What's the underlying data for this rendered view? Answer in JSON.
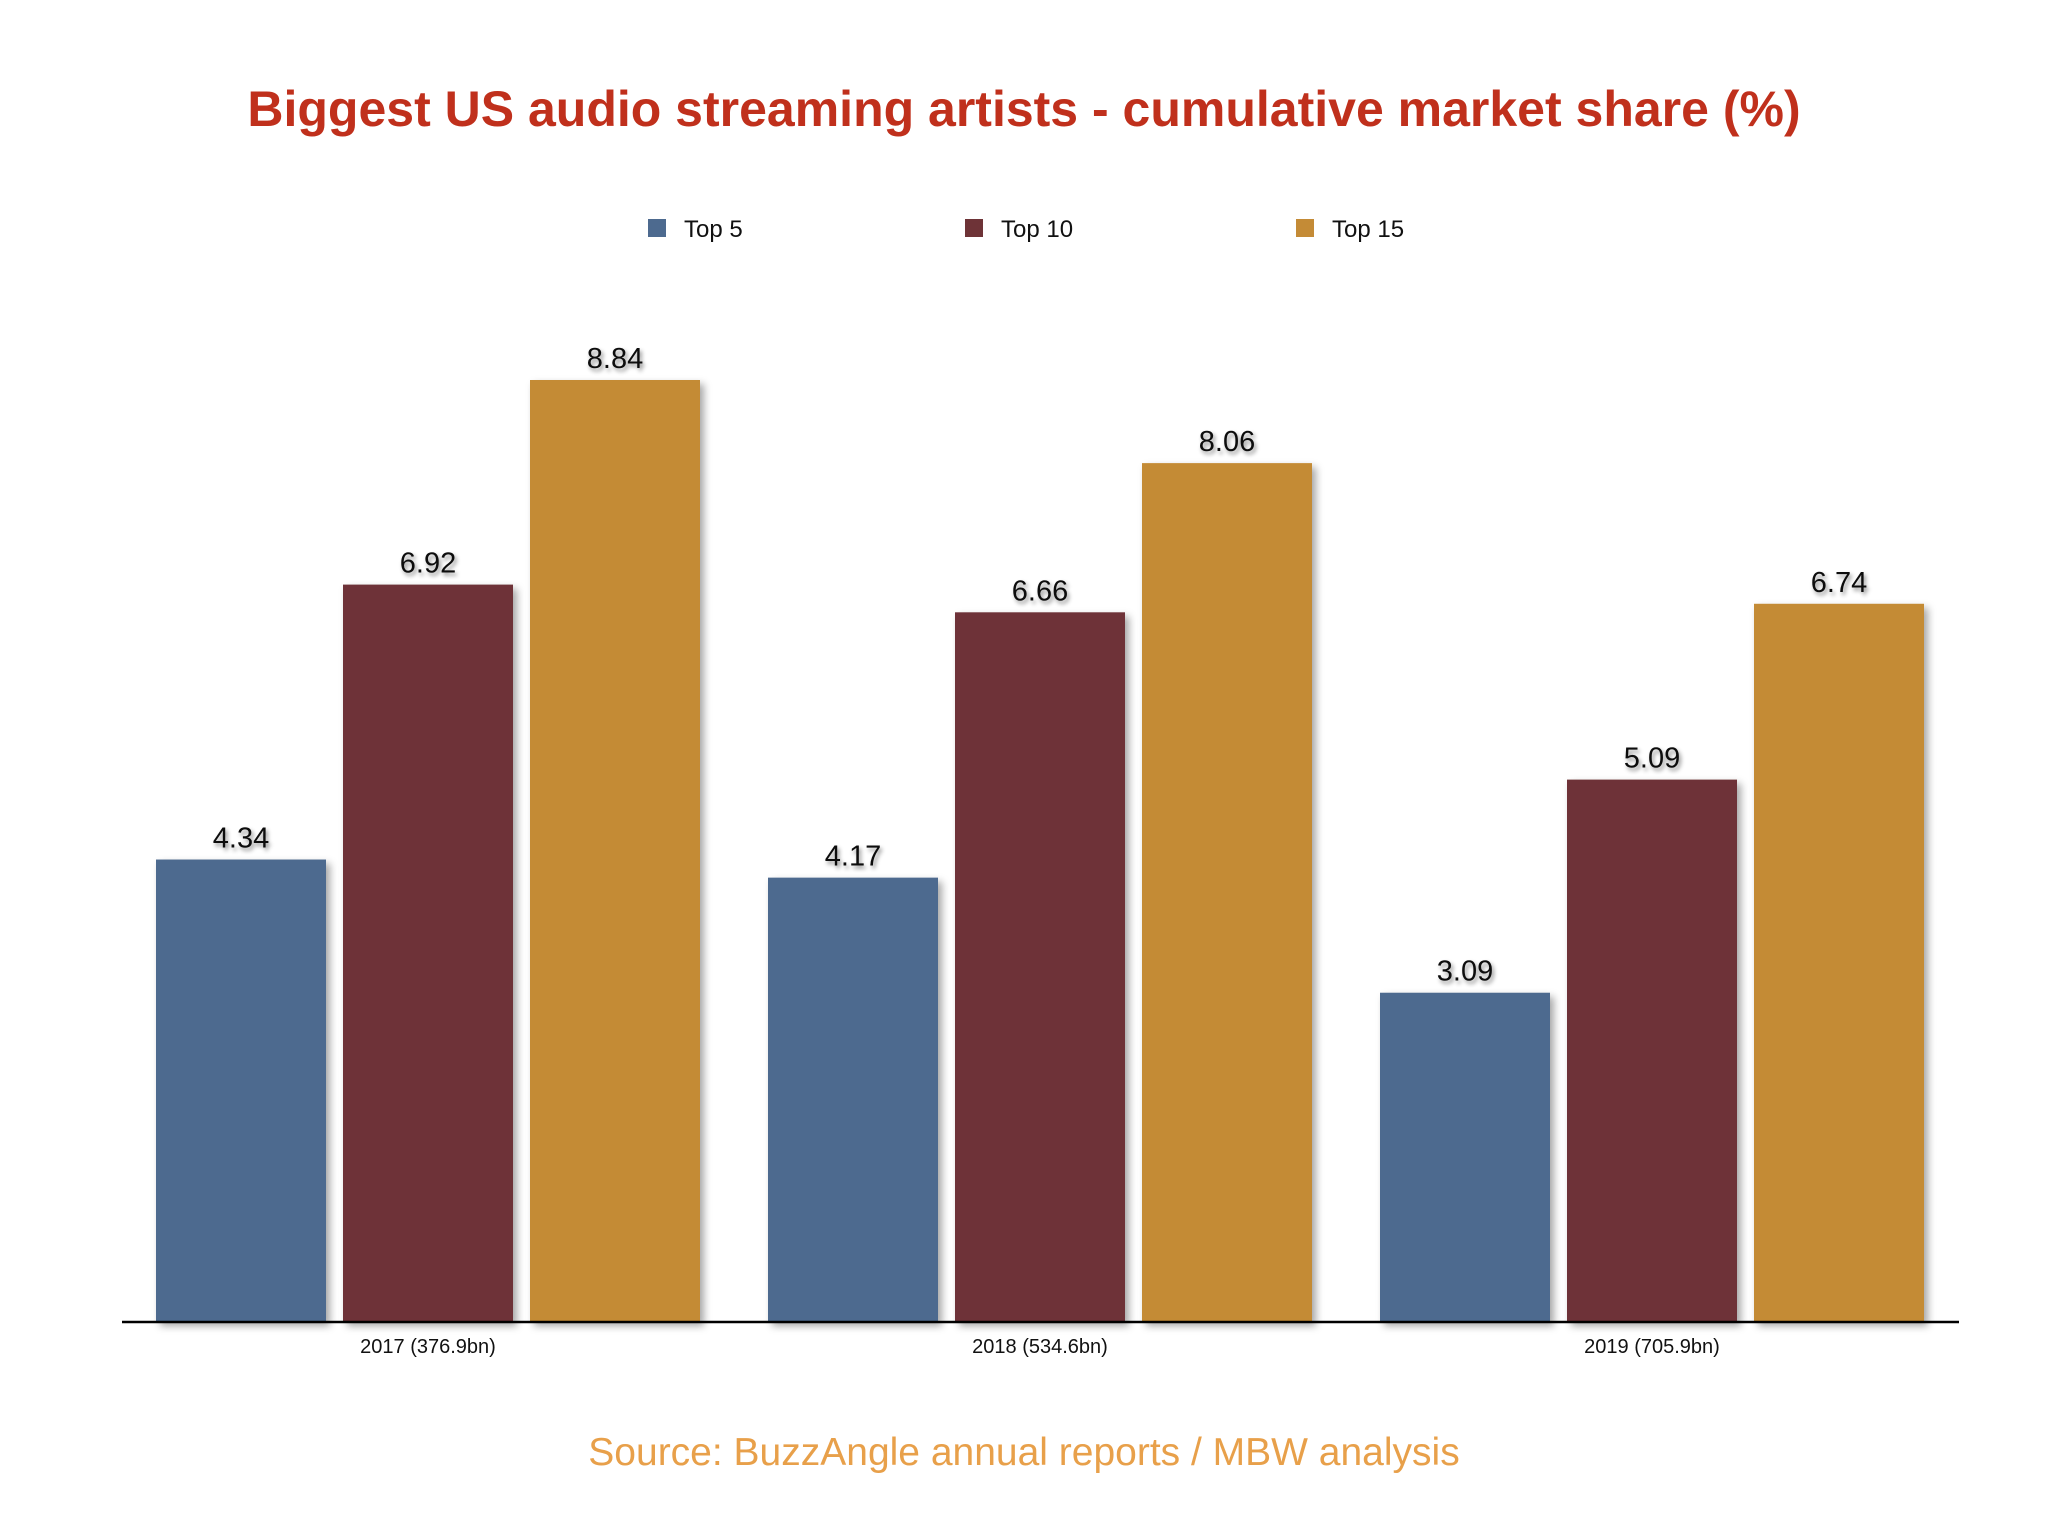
{
  "chart_data": {
    "type": "bar",
    "title": "Biggest US audio streaming artists - cumulative market share (%)",
    "categories": [
      "2017 (376.9bn)",
      "2018 (534.6bn)",
      "2019 (705.9bn)"
    ],
    "series": [
      {
        "name": "Top 5",
        "values": [
          4.34,
          4.17,
          3.09
        ],
        "color": "#4d6a8f"
      },
      {
        "name": "Top 10",
        "values": [
          6.92,
          6.66,
          5.09
        ],
        "color": "#6e3337"
      },
      {
        "name": "Top 15",
        "values": [
          8.84,
          8.06,
          6.74
        ],
        "color": "#c48b36"
      }
    ],
    "value_labels": [
      [
        "4.34",
        "4.17",
        "3.09"
      ],
      [
        "6.92",
        "6.66",
        "5.09"
      ],
      [
        "8.84",
        "8.06",
        "6.74"
      ]
    ],
    "xlabel": "",
    "ylabel": "",
    "ylim": [
      0,
      9.5
    ],
    "grid": false,
    "legend_position": "top",
    "source": "Source: BuzzAngle annual reports / MBW analysis",
    "title_color": "#c0301c",
    "source_color": "#e8a04a"
  }
}
